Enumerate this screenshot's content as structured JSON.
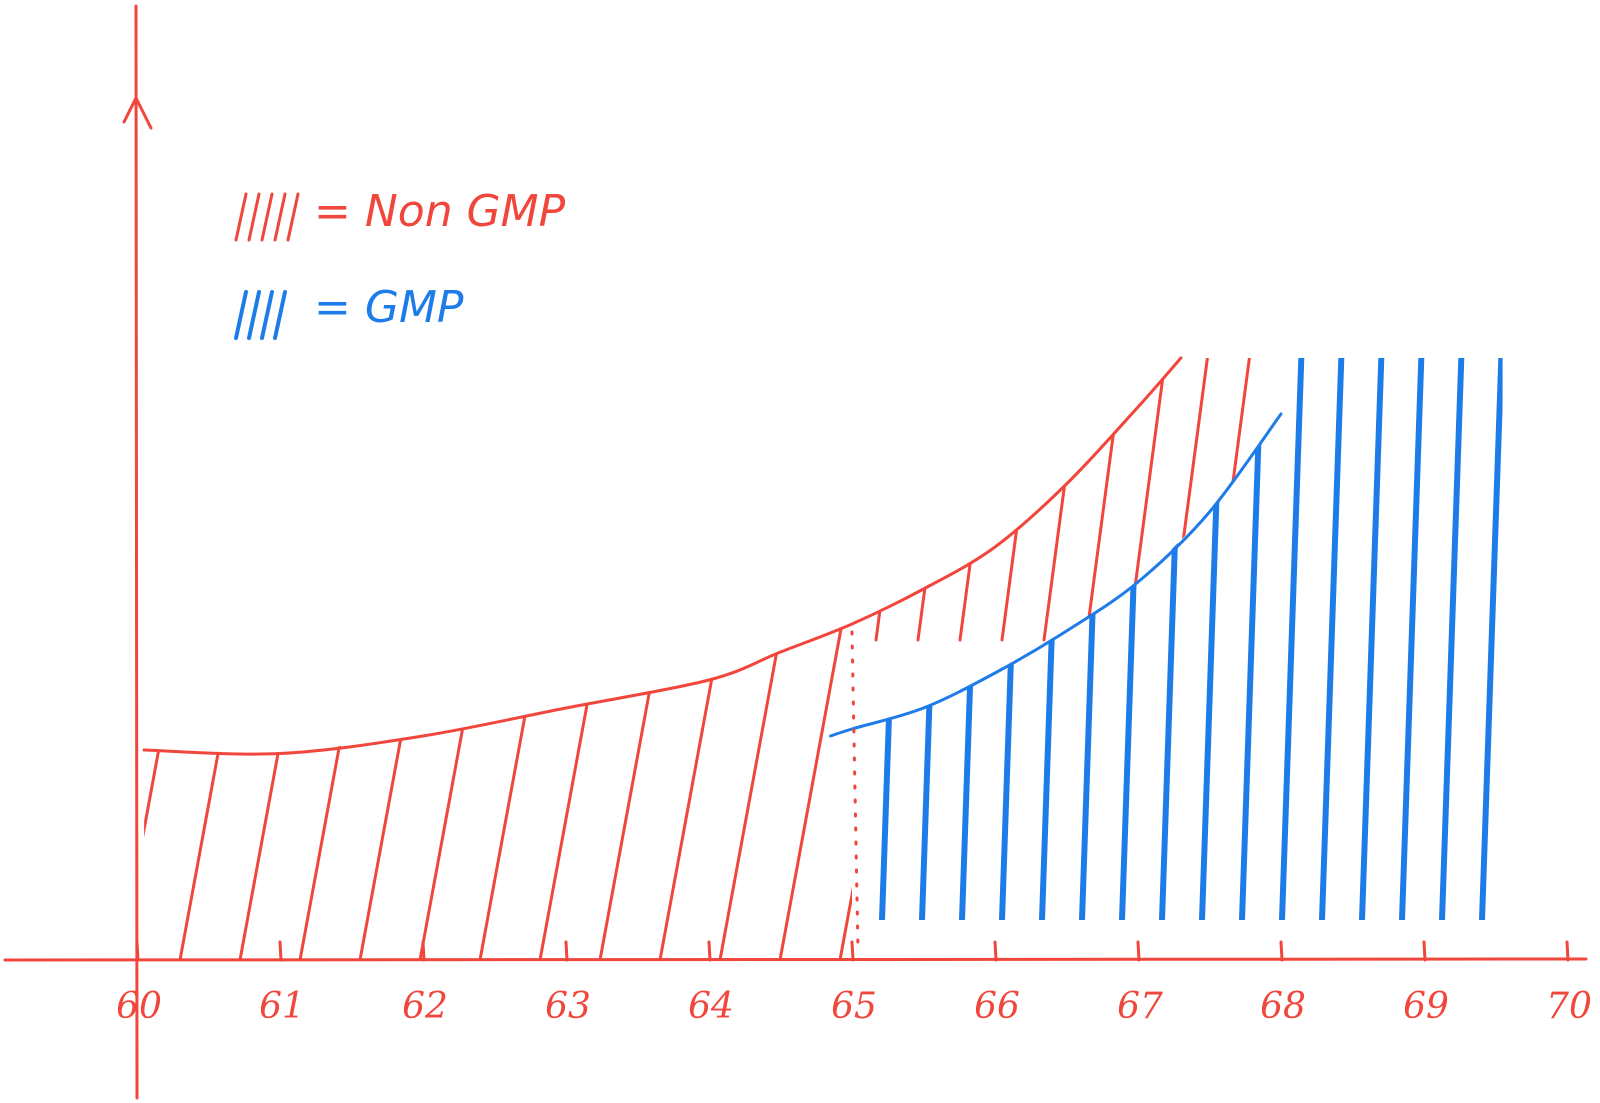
{
  "chart_data": {
    "type": "area",
    "title": "",
    "xlabel": "",
    "ylabel": "",
    "x_ticks": [
      "60",
      "61",
      "62",
      "63",
      "64",
      "65",
      "66",
      "67",
      "68",
      "69",
      "70"
    ],
    "xlim": [
      60,
      70
    ],
    "ylim": [
      0,
      10
    ],
    "grid": false,
    "legend_placement": "top-left",
    "legend": [
      {
        "swatch": "/////",
        "label": "= Non GMP",
        "color": "#f0463c"
      },
      {
        "swatch": "////",
        "label": "= GMP",
        "color": "#1e7ce8"
      }
    ],
    "series": [
      {
        "key": "non_gmp",
        "color": "#f0463c",
        "x": [
          60.05,
          61.0,
          62.0,
          63.0,
          64.0,
          64.5,
          65.0,
          65.5,
          66.0,
          66.5,
          67.0,
          67.3
        ],
        "y": [
          3.0,
          2.95,
          3.2,
          3.6,
          4.0,
          4.4,
          4.8,
          5.3,
          5.9,
          6.8,
          7.9,
          8.6
        ]
      },
      {
        "key": "gmp",
        "color": "#1e7ce8",
        "x": [
          64.85,
          65.0,
          65.5,
          66.0,
          66.5,
          67.0,
          67.5,
          68.0
        ],
        "y": [
          3.2,
          3.3,
          3.6,
          4.1,
          4.7,
          5.4,
          6.4,
          7.8
        ]
      }
    ],
    "cutoff": {
      "x": 65,
      "style": "dotted"
    }
  },
  "colors": {
    "red": "#f0463c",
    "blue": "#1e7ce8",
    "background": "#ffffff"
  }
}
